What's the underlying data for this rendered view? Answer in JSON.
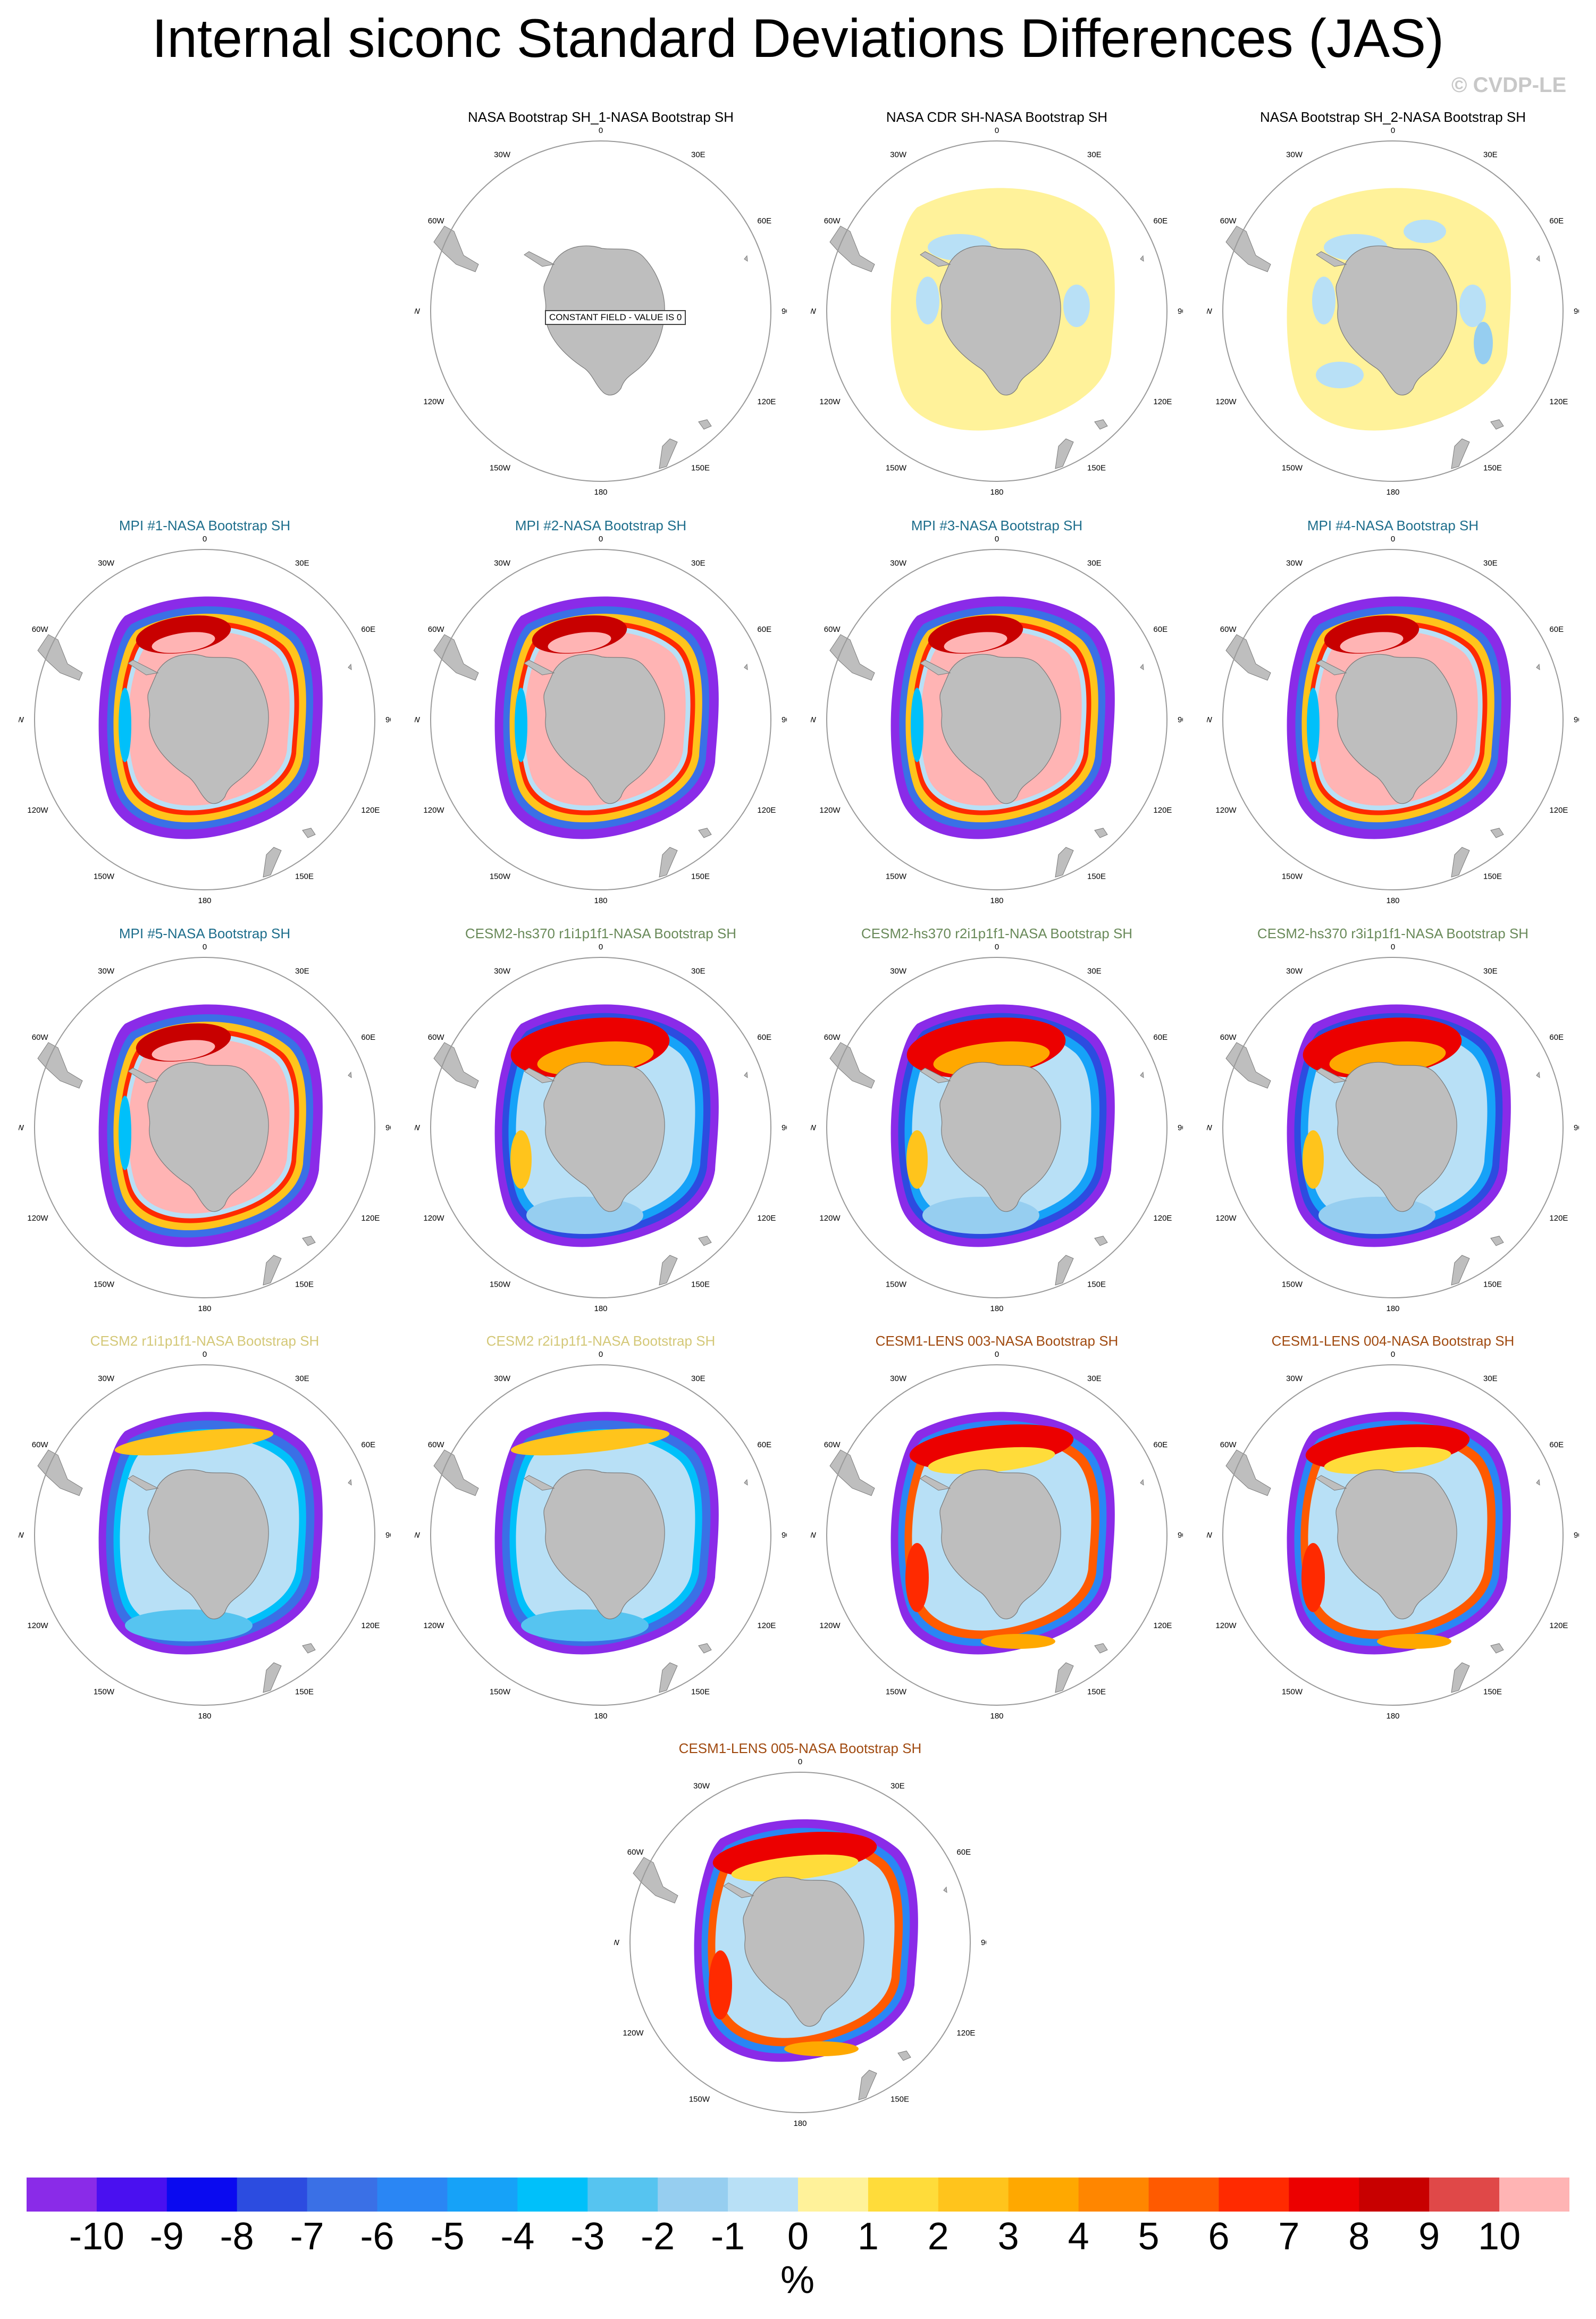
{
  "title": "Internal siconc Standard Deviations Differences (JAS)",
  "watermark": "© CVDP-LE",
  "lon_labels": [
    "0",
    "30E",
    "60E",
    "90E",
    "120E",
    "150E",
    "180",
    "150W",
    "120W",
    "90W",
    "60W",
    "30W"
  ],
  "colors": {
    "land": "#bebebe",
    "land_edge": "#7a7a7a",
    "title_nasa": "#000000",
    "title_mpi": "#1e6e8c",
    "title_cesm2_hs370": "#6a8a5a",
    "title_cesm2": "#d4c878",
    "title_cesm1_lens": "#a04a10"
  },
  "panels": [
    {
      "title": "NASA Bootstrap SH_1-NASA Bootstrap SH",
      "title_color": "#000000",
      "style": "constant",
      "note": "CONSTANT FIELD - VALUE IS 0"
    },
    {
      "title": "NASA CDR SH-NASA Bootstrap SH",
      "title_color": "#000000",
      "style": "obs_cdr"
    },
    {
      "title": "NASA Bootstrap SH_2-NASA Bootstrap SH",
      "title_color": "#000000",
      "style": "obs_bs2"
    },
    {
      "title": "MPI #1-NASA Bootstrap SH",
      "title_color": "#1e6e8c",
      "style": "mpi"
    },
    {
      "title": "MPI #2-NASA Bootstrap SH",
      "title_color": "#1e6e8c",
      "style": "mpi"
    },
    {
      "title": "MPI #3-NASA Bootstrap SH",
      "title_color": "#1e6e8c",
      "style": "mpi"
    },
    {
      "title": "MPI #4-NASA Bootstrap SH",
      "title_color": "#1e6e8c",
      "style": "mpi"
    },
    {
      "title": "MPI #5-NASA Bootstrap SH",
      "title_color": "#1e6e8c",
      "style": "mpi"
    },
    {
      "title": "CESM2-hs370 r1i1p1f1-NASA Bootstrap SH",
      "title_color": "#6a8a5a",
      "style": "cesm_red"
    },
    {
      "title": "CESM2-hs370 r2i1p1f1-NASA Bootstrap SH",
      "title_color": "#6a8a5a",
      "style": "cesm_red"
    },
    {
      "title": "CESM2-hs370 r3i1p1f1-NASA Bootstrap SH",
      "title_color": "#6a8a5a",
      "style": "cesm_red"
    },
    {
      "title": "CESM2 r1i1p1f1-NASA Bootstrap SH",
      "title_color": "#d4c878",
      "style": "cesm_blue"
    },
    {
      "title": "CESM2 r2i1p1f1-NASA Bootstrap SH",
      "title_color": "#d4c878",
      "style": "cesm_blue"
    },
    {
      "title": "CESM1-LENS 003-NASA Bootstrap SH",
      "title_color": "#a04a10",
      "style": "lens"
    },
    {
      "title": "CESM1-LENS 004-NASA Bootstrap SH",
      "title_color": "#a04a10",
      "style": "lens"
    },
    {
      "title": "CESM1-LENS 005-NASA Bootstrap SH",
      "title_color": "#a04a10",
      "style": "lens"
    }
  ],
  "colorbar": {
    "units": "%",
    "labels": [
      "-10",
      "-9",
      "-8",
      "-7",
      "-6",
      "-5",
      "-4",
      "-3",
      "-2",
      "-1",
      "0",
      "1",
      "2",
      "3",
      "4",
      "5",
      "6",
      "7",
      "8",
      "9",
      "10"
    ],
    "colors": [
      "#8a2be8",
      "#4a10f0",
      "#0a0af0",
      "#2c4ce0",
      "#3a70e6",
      "#2a86f4",
      "#16a2f8",
      "#00c0fa",
      "#56c4f0",
      "#96cef0",
      "#b8e0f6",
      "#fff29a",
      "#ffdc3a",
      "#ffc41c",
      "#ffa800",
      "#ff8600",
      "#ff5a00",
      "#ff2a00",
      "#ec0000",
      "#c80000",
      "#e04848",
      "#ffb4b4"
    ]
  }
}
